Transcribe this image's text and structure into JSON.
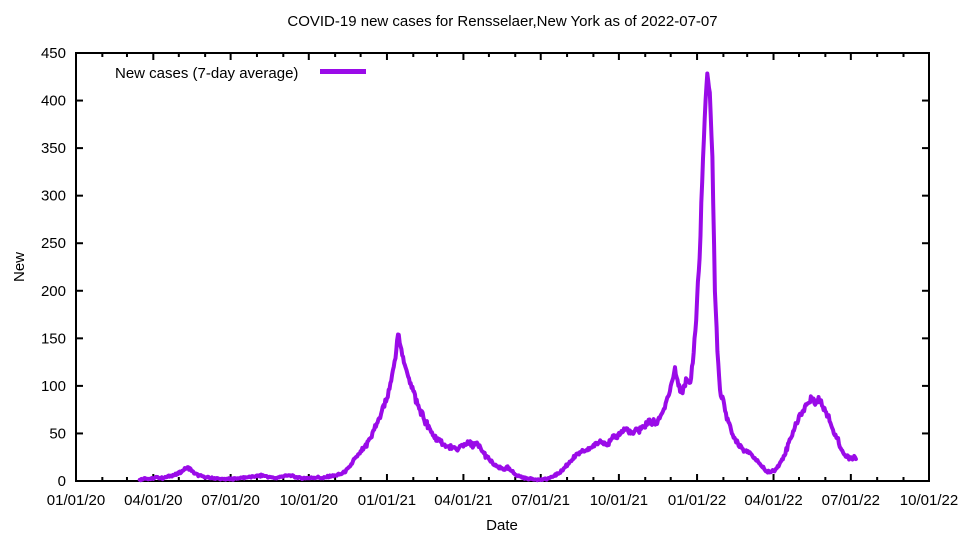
{
  "chart_data": {
    "type": "line",
    "title": "COVID-19 new cases for Rensselaer,New York as of 2022-07-07",
    "xlabel": "Date",
    "ylabel": "New",
    "xlim": [
      "2020-01-01",
      "2022-10-01"
    ],
    "ylim": [
      0,
      450
    ],
    "grid": false,
    "legend_position": "inside-top-left",
    "line_color": "#9a0be8",
    "x_ticks": [
      {
        "date": "2020-01-01",
        "label": "01/01/20"
      },
      {
        "date": "2020-04-01",
        "label": "04/01/20"
      },
      {
        "date": "2020-07-01",
        "label": "07/01/20"
      },
      {
        "date": "2020-10-01",
        "label": "10/01/20"
      },
      {
        "date": "2021-01-01",
        "label": "01/01/21"
      },
      {
        "date": "2021-04-01",
        "label": "04/01/21"
      },
      {
        "date": "2021-07-01",
        "label": "07/01/21"
      },
      {
        "date": "2021-10-01",
        "label": "10/01/21"
      },
      {
        "date": "2022-01-01",
        "label": "01/01/22"
      },
      {
        "date": "2022-04-01",
        "label": "04/01/22"
      },
      {
        "date": "2022-07-01",
        "label": "07/01/22"
      },
      {
        "date": "2022-10-01",
        "label": "10/01/22"
      }
    ],
    "y_ticks": [
      0,
      50,
      100,
      150,
      200,
      250,
      300,
      350,
      400,
      450
    ],
    "series": [
      {
        "name": "New cases (7-day average)",
        "color": "#9a0be8",
        "points": [
          [
            "2020-03-16",
            1
          ],
          [
            "2020-03-22",
            3
          ],
          [
            "2020-03-28",
            2
          ],
          [
            "2020-04-05",
            4
          ],
          [
            "2020-04-12",
            3
          ],
          [
            "2020-04-20",
            5
          ],
          [
            "2020-04-28",
            7
          ],
          [
            "2020-05-04",
            10
          ],
          [
            "2020-05-10",
            14
          ],
          [
            "2020-05-14",
            13
          ],
          [
            "2020-05-18",
            9
          ],
          [
            "2020-05-24",
            6
          ],
          [
            "2020-06-01",
            4
          ],
          [
            "2020-06-10",
            3
          ],
          [
            "2020-06-20",
            2
          ],
          [
            "2020-07-01",
            2
          ],
          [
            "2020-07-10",
            3
          ],
          [
            "2020-07-20",
            4
          ],
          [
            "2020-08-01",
            5
          ],
          [
            "2020-08-08",
            6
          ],
          [
            "2020-08-16",
            4
          ],
          [
            "2020-08-24",
            3
          ],
          [
            "2020-09-01",
            5
          ],
          [
            "2020-09-08",
            6
          ],
          [
            "2020-09-16",
            4
          ],
          [
            "2020-09-24",
            3
          ],
          [
            "2020-10-02",
            3
          ],
          [
            "2020-10-10",
            4
          ],
          [
            "2020-10-18",
            3
          ],
          [
            "2020-10-26",
            5
          ],
          [
            "2020-11-03",
            6
          ],
          [
            "2020-11-10",
            8
          ],
          [
            "2020-11-17",
            13
          ],
          [
            "2020-11-23",
            22
          ],
          [
            "2020-12-01",
            30
          ],
          [
            "2020-12-08",
            38
          ],
          [
            "2020-12-16",
            52
          ],
          [
            "2020-12-23",
            66
          ],
          [
            "2020-12-29",
            82
          ],
          [
            "2021-01-01",
            88
          ],
          [
            "2021-01-05",
            99
          ],
          [
            "2021-01-08",
            115
          ],
          [
            "2021-01-11",
            130
          ],
          [
            "2021-01-14",
            155
          ],
          [
            "2021-01-17",
            146
          ],
          [
            "2021-01-22",
            119
          ],
          [
            "2021-01-28",
            106
          ],
          [
            "2021-02-03",
            88
          ],
          [
            "2021-02-09",
            74
          ],
          [
            "2021-02-15",
            63
          ],
          [
            "2021-02-21",
            53
          ],
          [
            "2021-02-27",
            46
          ],
          [
            "2021-03-05",
            41
          ],
          [
            "2021-03-12",
            37
          ],
          [
            "2021-03-19",
            35
          ],
          [
            "2021-03-25",
            33
          ],
          [
            "2021-03-31",
            37
          ],
          [
            "2021-04-06",
            40
          ],
          [
            "2021-04-12",
            38
          ],
          [
            "2021-04-18",
            38
          ],
          [
            "2021-04-24",
            30
          ],
          [
            "2021-05-01",
            23
          ],
          [
            "2021-05-07",
            17
          ],
          [
            "2021-05-13",
            14
          ],
          [
            "2021-05-19",
            12
          ],
          [
            "2021-05-23",
            14
          ],
          [
            "2021-05-28",
            10
          ],
          [
            "2021-06-03",
            6
          ],
          [
            "2021-06-09",
            4
          ],
          [
            "2021-06-15",
            2.5
          ],
          [
            "2021-06-22",
            2
          ],
          [
            "2021-07-01",
            1.5
          ],
          [
            "2021-07-08",
            2
          ],
          [
            "2021-07-14",
            4
          ],
          [
            "2021-07-20",
            7
          ],
          [
            "2021-07-27",
            12
          ],
          [
            "2021-08-04",
            20
          ],
          [
            "2021-08-12",
            27
          ],
          [
            "2021-08-20",
            31
          ],
          [
            "2021-08-28",
            34
          ],
          [
            "2021-09-05",
            40
          ],
          [
            "2021-09-12",
            43
          ],
          [
            "2021-09-18",
            38
          ],
          [
            "2021-09-25",
            46
          ],
          [
            "2021-10-02",
            50
          ],
          [
            "2021-10-09",
            55
          ],
          [
            "2021-10-16",
            49
          ],
          [
            "2021-10-23",
            53
          ],
          [
            "2021-10-30",
            57
          ],
          [
            "2021-11-06",
            63
          ],
          [
            "2021-11-13",
            60
          ],
          [
            "2021-11-20",
            70
          ],
          [
            "2021-11-27",
            85
          ],
          [
            "2021-12-03",
            105
          ],
          [
            "2021-12-06",
            118
          ],
          [
            "2021-12-10",
            99
          ],
          [
            "2021-12-14",
            93
          ],
          [
            "2021-12-19",
            106
          ],
          [
            "2021-12-24",
            102
          ],
          [
            "2021-12-28",
            135
          ],
          [
            "2021-12-31",
            170
          ],
          [
            "2022-01-02",
            210
          ],
          [
            "2022-01-04",
            232
          ],
          [
            "2022-01-06",
            290
          ],
          [
            "2022-01-09",
            360
          ],
          [
            "2022-01-11",
            400
          ],
          [
            "2022-01-13",
            427
          ],
          [
            "2022-01-16",
            408
          ],
          [
            "2022-01-19",
            340
          ],
          [
            "2022-01-22",
            200
          ],
          [
            "2022-01-25",
            140
          ],
          [
            "2022-01-28",
            95
          ],
          [
            "2022-02-02",
            80
          ],
          [
            "2022-02-06",
            65
          ],
          [
            "2022-02-10",
            52
          ],
          [
            "2022-02-15",
            45
          ],
          [
            "2022-02-20",
            38
          ],
          [
            "2022-02-26",
            33
          ],
          [
            "2022-03-04",
            29
          ],
          [
            "2022-03-10",
            24
          ],
          [
            "2022-03-16",
            18
          ],
          [
            "2022-03-22",
            11
          ],
          [
            "2022-03-28",
            9
          ],
          [
            "2022-04-03",
            12
          ],
          [
            "2022-04-09",
            19
          ],
          [
            "2022-04-15",
            30
          ],
          [
            "2022-04-21",
            45
          ],
          [
            "2022-04-27",
            58
          ],
          [
            "2022-05-03",
            70
          ],
          [
            "2022-05-08",
            78
          ],
          [
            "2022-05-13",
            83
          ],
          [
            "2022-05-17",
            87
          ],
          [
            "2022-05-21",
            83
          ],
          [
            "2022-05-25",
            86
          ],
          [
            "2022-05-29",
            79
          ],
          [
            "2022-06-02",
            73
          ],
          [
            "2022-06-06",
            66
          ],
          [
            "2022-06-09",
            55
          ],
          [
            "2022-06-12",
            48
          ],
          [
            "2022-06-16",
            45
          ],
          [
            "2022-06-20",
            33
          ],
          [
            "2022-06-24",
            27
          ],
          [
            "2022-06-28",
            24
          ],
          [
            "2022-07-02",
            23
          ],
          [
            "2022-07-05",
            25
          ],
          [
            "2022-07-07",
            23
          ]
        ]
      }
    ]
  },
  "legend": {
    "label": "New cases (7-day average)"
  }
}
